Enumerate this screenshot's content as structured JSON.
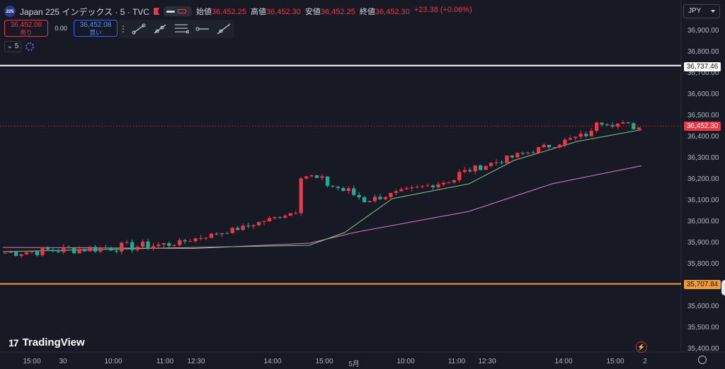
{
  "header": {
    "logo_text": "225",
    "title": "Japan 225 インデックス · 5 · TVC",
    "ohlc": [
      {
        "key": "始値",
        "value": "36,452.25"
      },
      {
        "key": "高値",
        "value": "36,452.30"
      },
      {
        "key": "安値",
        "value": "36,452.25"
      },
      {
        "key": "終値",
        "value": "36,452.30"
      }
    ],
    "change": "+23.38 (+0.06%)"
  },
  "trade": {
    "sell_price": "36,452.08",
    "sell_label": "売り",
    "spread": "0.00",
    "buy_price": "36,452.08",
    "buy_label": "買い"
  },
  "toolbar": {
    "tools": [
      "trend-line-icon",
      "ray-icon",
      "fib-icon",
      "horizontal-ray-icon",
      "extended-line-icon"
    ]
  },
  "interval": {
    "value": "5"
  },
  "currency": "JPY",
  "brand": "TradingView",
  "colors": {
    "up": "#f23645",
    "down": "#22ab94",
    "white_line": "#ffffff",
    "orange_line": "#f29c38",
    "ma_fast": "#81c784",
    "ma_slow": "#e879c0",
    "last_price": "#f23645"
  },
  "chart_data": {
    "type": "candlestick",
    "y_axis": {
      "range": [
        35380,
        36985
      ],
      "ticks": [
        "36,900.00",
        "36,800.00",
        "36,700.00",
        "36,600.00",
        "36,500.00",
        "36,400.00",
        "36,300.00",
        "36,200.00",
        "36,100.00",
        "36,000.00",
        "35,900.00",
        "35,800.00",
        "35,700.00",
        "35,600.00",
        "35,500.00",
        "35,400.00"
      ]
    },
    "x_axis": {
      "labels": [
        "15:00",
        "30",
        "10:00",
        "11:00",
        "12:30",
        "14:00",
        "15:00",
        "5月",
        "10:00",
        "11:00",
        "12:30",
        "14:00",
        "15:00",
        "2"
      ]
    },
    "horizontal_lines": [
      {
        "value": 36737.46,
        "label": "36,737.46",
        "color": "white"
      },
      {
        "value": 35707.84,
        "label": "35,707.84",
        "color": "orange"
      }
    ],
    "last_price": {
      "value": 36452.3,
      "label": "36,452.30"
    },
    "segments": [
      {
        "n": 31,
        "from": 35855,
        "to": 35892,
        "noise": 45
      },
      {
        "n": 16,
        "from": 35892,
        "to": 35980,
        "noise": 22
      },
      {
        "n": 9,
        "from": 35990,
        "to": 36050,
        "noise": 20
      },
      {
        "n": 12,
        "from": 36230,
        "to": 36120,
        "noise": 55
      },
      {
        "n": 18,
        "from": 36100,
        "to": 36200,
        "noise": 28
      },
      {
        "n": 26,
        "from": 36230,
        "to": 36420,
        "noise": 30
      },
      {
        "n": 9,
        "from": 36480,
        "to": 36445,
        "noise": 35
      }
    ],
    "ma_fast": [
      [
        0,
        35860
      ],
      [
        0.3,
        35880
      ],
      [
        0.48,
        35890
      ],
      [
        0.535,
        35950
      ],
      [
        0.61,
        36110
      ],
      [
        0.73,
        36180
      ],
      [
        0.8,
        36290
      ],
      [
        0.9,
        36380
      ],
      [
        1.0,
        36435
      ]
    ],
    "ma_slow": [
      [
        0,
        35880
      ],
      [
        0.3,
        35875
      ],
      [
        0.48,
        35900
      ],
      [
        0.55,
        35950
      ],
      [
        0.73,
        36050
      ],
      [
        0.86,
        36180
      ],
      [
        1.0,
        36265
      ]
    ]
  }
}
